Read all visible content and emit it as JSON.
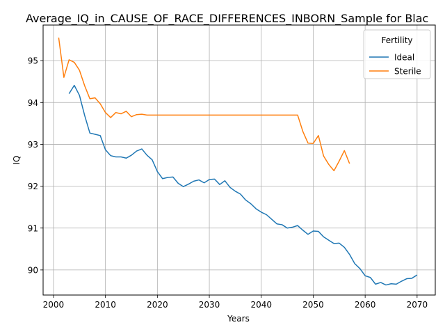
{
  "chart_data": {
    "type": "line",
    "title": "Average_IQ_in_CAUSE_OF_RACE_DIFFERENCES_INBORN_Sample for Blac",
    "xlabel": "Years",
    "ylabel": "IQ",
    "xlim": [
      1998,
      2073.5
    ],
    "ylim": [
      89.4,
      95.85
    ],
    "xticks": [
      2000,
      2010,
      2020,
      2030,
      2040,
      2050,
      2060,
      2070
    ],
    "yticks": [
      90,
      91,
      92,
      93,
      94,
      95
    ],
    "grid": true,
    "legend": {
      "title": "Fertility",
      "placement": "top-right"
    },
    "series": [
      {
        "name": "Ideal",
        "color": "#1f77b4",
        "points": [
          [
            2003,
            94.21
          ],
          [
            2004,
            94.41
          ],
          [
            2005,
            94.17
          ],
          [
            2006,
            93.69
          ],
          [
            2007,
            93.27
          ],
          [
            2008,
            93.24
          ],
          [
            2009,
            93.21
          ],
          [
            2010,
            92.87
          ],
          [
            2011,
            92.73
          ],
          [
            2012,
            92.7
          ],
          [
            2013,
            92.7
          ],
          [
            2014,
            92.67
          ],
          [
            2015,
            92.74
          ],
          [
            2016,
            92.84
          ],
          [
            2017,
            92.89
          ],
          [
            2018,
            92.74
          ],
          [
            2019,
            92.63
          ],
          [
            2020,
            92.35
          ],
          [
            2021,
            92.18
          ],
          [
            2022,
            92.21
          ],
          [
            2023,
            92.22
          ],
          [
            2024,
            92.07
          ],
          [
            2025,
            91.99
          ],
          [
            2026,
            92.05
          ],
          [
            2027,
            92.12
          ],
          [
            2028,
            92.15
          ],
          [
            2029,
            92.08
          ],
          [
            2030,
            92.16
          ],
          [
            2031,
            92.17
          ],
          [
            2032,
            92.04
          ],
          [
            2033,
            92.13
          ],
          [
            2034,
            91.97
          ],
          [
            2035,
            91.88
          ],
          [
            2036,
            91.81
          ],
          [
            2037,
            91.67
          ],
          [
            2038,
            91.58
          ],
          [
            2039,
            91.46
          ],
          [
            2040,
            91.38
          ],
          [
            2041,
            91.32
          ],
          [
            2042,
            91.21
          ],
          [
            2043,
            91.1
          ],
          [
            2044,
            91.08
          ],
          [
            2045,
            91.0
          ],
          [
            2046,
            91.02
          ],
          [
            2047,
            91.06
          ],
          [
            2048,
            90.95
          ],
          [
            2049,
            90.85
          ],
          [
            2050,
            90.93
          ],
          [
            2051,
            90.92
          ],
          [
            2052,
            90.79
          ],
          [
            2053,
            90.71
          ],
          [
            2054,
            90.63
          ],
          [
            2055,
            90.64
          ],
          [
            2056,
            90.54
          ],
          [
            2057,
            90.37
          ],
          [
            2058,
            90.15
          ],
          [
            2059,
            90.03
          ],
          [
            2060,
            89.86
          ],
          [
            2061,
            89.82
          ],
          [
            2062,
            89.66
          ],
          [
            2063,
            89.7
          ],
          [
            2064,
            89.64
          ],
          [
            2065,
            89.67
          ],
          [
            2066,
            89.66
          ],
          [
            2067,
            89.73
          ],
          [
            2068,
            89.79
          ],
          [
            2069,
            89.8
          ],
          [
            2070,
            89.88
          ]
        ]
      },
      {
        "name": "Sterile",
        "color": "#ff7f0e",
        "points": [
          [
            2001,
            95.55
          ],
          [
            2002,
            94.6
          ],
          [
            2003,
            95.02
          ],
          [
            2004,
            94.96
          ],
          [
            2005,
            94.77
          ],
          [
            2006,
            94.4
          ],
          [
            2007,
            94.09
          ],
          [
            2008,
            94.11
          ],
          [
            2009,
            93.97
          ],
          [
            2010,
            93.76
          ],
          [
            2011,
            93.64
          ],
          [
            2012,
            93.76
          ],
          [
            2013,
            93.73
          ],
          [
            2014,
            93.79
          ],
          [
            2015,
            93.66
          ],
          [
            2016,
            93.71
          ],
          [
            2017,
            93.72
          ],
          [
            2018,
            93.7
          ],
          [
            2019,
            93.7
          ],
          [
            2020,
            93.7
          ],
          [
            2025,
            93.7
          ],
          [
            2030,
            93.7
          ],
          [
            2035,
            93.7
          ],
          [
            2040,
            93.7
          ],
          [
            2045,
            93.7
          ],
          [
            2047,
            93.7
          ],
          [
            2048,
            93.31
          ],
          [
            2049,
            93.03
          ],
          [
            2050,
            93.02
          ],
          [
            2051,
            93.21
          ],
          [
            2052,
            92.72
          ],
          [
            2053,
            92.52
          ],
          [
            2054,
            92.37
          ],
          [
            2055,
            92.6
          ],
          [
            2056,
            92.85
          ],
          [
            2057,
            92.54
          ]
        ]
      }
    ]
  }
}
